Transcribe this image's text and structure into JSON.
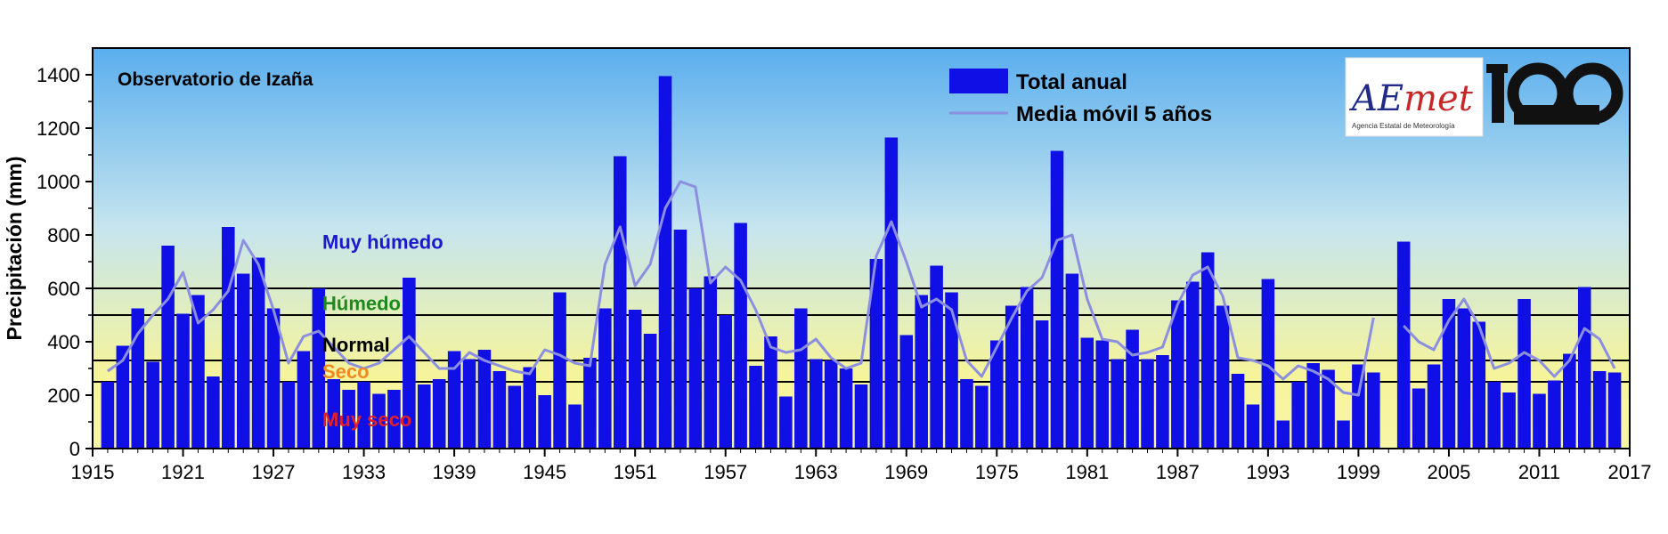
{
  "chart_data": {
    "type": "bar",
    "title": "Observatorio de Izaña",
    "ylabel": "Precipitación (mm)",
    "xlabel": "",
    "ylim": [
      0,
      1500
    ],
    "xlim": [
      1915,
      2017
    ],
    "yticks": [
      0,
      200,
      400,
      600,
      800,
      1000,
      1200,
      1400
    ],
    "xticks": [
      1915,
      1921,
      1927,
      1933,
      1939,
      1945,
      1951,
      1957,
      1963,
      1969,
      1975,
      1981,
      1987,
      1993,
      1999,
      2005,
      2011,
      2017
    ],
    "grid": false,
    "legend_position": "top-center",
    "legend": [
      "Total anual",
      "Media móvil 5 años"
    ],
    "colors": {
      "bar": "#1010e6",
      "moving_average": "#8c8fe0",
      "sky_top": "#5aaeee",
      "sky_mid": "#c6e5ee",
      "sky_bottom": "#f6f49a",
      "threshold_line": "#000000",
      "muy_humedo": "#1a1acc",
      "humedo": "#1f8a1f",
      "normal": "#000000",
      "seco": "#f08a20",
      "muy_seco": "#e0202c"
    },
    "thresholds": [
      250,
      330,
      500,
      600
    ],
    "categories_labels": [
      {
        "text": "Muy húmedo",
        "y": 775,
        "color_key": "muy_humedo"
      },
      {
        "text": "Húmedo",
        "y": 545,
        "color_key": "humedo"
      },
      {
        "text": "Normal",
        "y": 390,
        "color_key": "normal"
      },
      {
        "text": "Seco",
        "y": 290,
        "color_key": "seco"
      },
      {
        "text": "Muy seco",
        "y": 110,
        "color_key": "muy_seco"
      }
    ],
    "series": [
      {
        "name": "Total anual",
        "x": [
          1916,
          1917,
          1918,
          1919,
          1920,
          1921,
          1922,
          1923,
          1924,
          1925,
          1926,
          1927,
          1928,
          1929,
          1930,
          1931,
          1932,
          1933,
          1934,
          1935,
          1936,
          1937,
          1938,
          1939,
          1940,
          1941,
          1942,
          1943,
          1944,
          1945,
          1946,
          1947,
          1948,
          1949,
          1950,
          1951,
          1952,
          1953,
          1954,
          1955,
          1956,
          1957,
          1958,
          1959,
          1960,
          1961,
          1962,
          1963,
          1964,
          1965,
          1966,
          1967,
          1968,
          1969,
          1970,
          1971,
          1972,
          1973,
          1974,
          1975,
          1976,
          1977,
          1978,
          1979,
          1980,
          1981,
          1982,
          1983,
          1984,
          1985,
          1986,
          1987,
          1988,
          1989,
          1990,
          1991,
          1992,
          1993,
          1994,
          1995,
          1996,
          1997,
          1998,
          1999,
          2000,
          2002,
          2003,
          2004,
          2005,
          2006,
          2007,
          2008,
          2009,
          2010,
          2011,
          2012,
          2013,
          2014,
          2015,
          2016
        ],
        "values": [
          250,
          385,
          525,
          325,
          760,
          505,
          575,
          270,
          830,
          655,
          715,
          525,
          250,
          365,
          600,
          260,
          220,
          250,
          205,
          220,
          640,
          240,
          260,
          365,
          335,
          370,
          290,
          235,
          305,
          200,
          585,
          165,
          340,
          525,
          1095,
          520,
          430,
          1395,
          820,
          600,
          645,
          500,
          845,
          310,
          420,
          195,
          525,
          335,
          330,
          300,
          240,
          710,
          1165,
          425,
          575,
          685,
          585,
          260,
          235,
          405,
          535,
          605,
          480,
          1115,
          655,
          415,
          405,
          335,
          445,
          335,
          350,
          555,
          625,
          735,
          535,
          280,
          165,
          635,
          105,
          250,
          320,
          295,
          105,
          315,
          285,
          775,
          225,
          315,
          560,
          525,
          475,
          250,
          210,
          560,
          205,
          255,
          355,
          605,
          290,
          285
        ]
      },
      {
        "name": "Media móvil 5 años",
        "x": [
          1916,
          1917,
          1918,
          1919,
          1920,
          1921,
          1922,
          1923,
          1924,
          1925,
          1926,
          1927,
          1928,
          1929,
          1930,
          1931,
          1932,
          1933,
          1934,
          1935,
          1936,
          1937,
          1938,
          1939,
          1940,
          1941,
          1942,
          1943,
          1944,
          1945,
          1946,
          1947,
          1948,
          1949,
          1950,
          1951,
          1952,
          1953,
          1954,
          1955,
          1956,
          1957,
          1958,
          1959,
          1960,
          1961,
          1962,
          1963,
          1964,
          1965,
          1966,
          1967,
          1968,
          1969,
          1970,
          1971,
          1972,
          1973,
          1974,
          1975,
          1976,
          1977,
          1978,
          1979,
          1980,
          1981,
          1982,
          1983,
          1984,
          1985,
          1986,
          1987,
          1988,
          1989,
          1990,
          1991,
          1992,
          1993,
          1994,
          1995,
          1996,
          1997,
          1998,
          1999,
          2000
        ],
        "values": [
          290,
          330,
          430,
          500,
          560,
          660,
          470,
          520,
          590,
          780,
          690,
          520,
          320,
          420,
          440,
          380,
          320,
          300,
          320,
          370,
          420,
          360,
          300,
          300,
          360,
          330,
          310,
          290,
          280,
          370,
          350,
          320,
          310,
          690,
          830,
          610,
          690,
          900,
          1000,
          980,
          620,
          680,
          630,
          520,
          380,
          360,
          370,
          410,
          340,
          300,
          320,
          720,
          850,
          700,
          530,
          560,
          520,
          330,
          270,
          380,
          490,
          590,
          640,
          780,
          800,
          560,
          410,
          400,
          350,
          360,
          380,
          540,
          650,
          680,
          570,
          340,
          330,
          310,
          260,
          310,
          290,
          260,
          210,
          200,
          490
        ]
      },
      {
        "name": "Media móvil 5 años",
        "x": [
          2002,
          2003,
          2004,
          2005,
          2006,
          2007,
          2008,
          2009,
          2010,
          2011,
          2012,
          2013,
          2014,
          2015,
          2016
        ],
        "values": [
          460,
          400,
          370,
          480,
          560,
          460,
          300,
          320,
          360,
          330,
          270,
          330,
          450,
          410,
          300
        ]
      }
    ]
  },
  "logo": {
    "brand_a": "AE",
    "brand_b": "met",
    "tagline": "Agencia Estatal de Meteorología",
    "anniversary": "100"
  }
}
